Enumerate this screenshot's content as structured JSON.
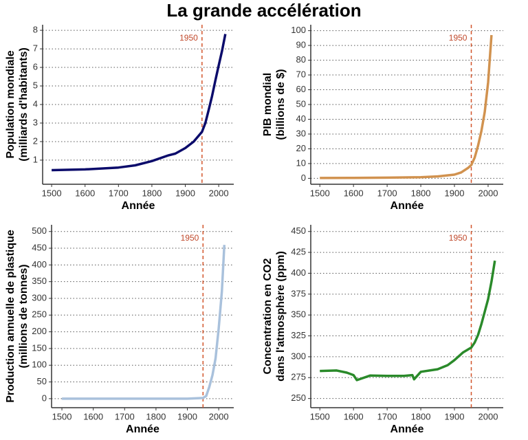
{
  "title": "La grande accélération",
  "chart_data": [
    {
      "type": "line",
      "ylabel": [
        "Population mondiale",
        "(milliards d'habitants)"
      ],
      "xlabel": "Année",
      "x": [
        1500,
        1600,
        1700,
        1750,
        1800,
        1850,
        1870,
        1900,
        1925,
        1950,
        1960,
        1970,
        1980,
        1990,
        2000,
        2010,
        2020
      ],
      "values": [
        0.46,
        0.5,
        0.6,
        0.72,
        0.95,
        1.26,
        1.35,
        1.65,
        2.0,
        2.53,
        3.0,
        3.7,
        4.45,
        5.3,
        6.1,
        6.9,
        7.8
      ],
      "color": "#0b0b6b",
      "xlim": [
        1473,
        2045
      ],
      "ylim": [
        -0.3,
        8.3
      ],
      "xticks": [
        1500,
        1600,
        1700,
        1800,
        1900,
        2000
      ],
      "yticks": [
        1,
        2,
        3,
        4,
        5,
        6,
        7,
        8
      ],
      "vline": 1950,
      "grid": true
    },
    {
      "type": "line",
      "ylabel": [
        "PIB mondial",
        "(billions de $)"
      ],
      "xlabel": "Année",
      "x": [
        1500,
        1600,
        1700,
        1800,
        1850,
        1900,
        1920,
        1940,
        1950,
        1960,
        1970,
        1980,
        1990,
        2000,
        2010
      ],
      "values": [
        0.25,
        0.35,
        0.45,
        0.8,
        1.3,
        2.5,
        4,
        7,
        9,
        14,
        22,
        32,
        45,
        65,
        97
      ],
      "color": "#d1924f",
      "xlim": [
        1473,
        2045
      ],
      "ylim": [
        -4,
        104
      ],
      "xticks": [
        1500,
        1600,
        1700,
        1800,
        1900,
        2000
      ],
      "yticks": [
        0,
        10,
        20,
        30,
        40,
        50,
        60,
        70,
        80,
        90,
        100
      ],
      "vline": 1950,
      "grid": true
    },
    {
      "type": "line",
      "ylabel": [
        "Production annuelle de plastique",
        "(millions de tonnes)"
      ],
      "xlabel": "Année",
      "x": [
        1500,
        1900,
        1950,
        1960,
        1970,
        1980,
        1990,
        2000,
        2010,
        2018
      ],
      "values": [
        0,
        0,
        2,
        8,
        35,
        70,
        120,
        210,
        320,
        460
      ],
      "color": "#a9c1dc",
      "xlim": [
        1467,
        2048
      ],
      "ylim": [
        -27,
        520
      ],
      "xticks": [
        1500,
        1600,
        1700,
        1800,
        1900,
        2000
      ],
      "yticks": [
        0,
        50,
        100,
        150,
        200,
        250,
        300,
        350,
        400,
        450,
        500
      ],
      "vline": 1950,
      "grid": true
    },
    {
      "type": "line",
      "ylabel": [
        "Concentration en CO2",
        "dans l'atmosphère (ppm)"
      ],
      "xlabel": "Année",
      "x": [
        1500,
        1550,
        1580,
        1600,
        1610,
        1650,
        1700,
        1750,
        1775,
        1780,
        1800,
        1850,
        1880,
        1900,
        1925,
        1950,
        1960,
        1970,
        1980,
        1990,
        2000,
        2010,
        2020
      ],
      "values": [
        283,
        283.5,
        281,
        278,
        272,
        277.5,
        277,
        277,
        278,
        273,
        282,
        285,
        290,
        296,
        305,
        311,
        317,
        326,
        339,
        354,
        369,
        390,
        415
      ],
      "color": "#2a8a2a",
      "xlim": [
        1473,
        2045
      ],
      "ylim": [
        239,
        458
      ],
      "xticks": [
        1500,
        1600,
        1700,
        1800,
        1900,
        2000
      ],
      "yticks": [
        250,
        275,
        300,
        325,
        350,
        375,
        400,
        425,
        450
      ],
      "vline": 1950,
      "grid": true
    }
  ]
}
